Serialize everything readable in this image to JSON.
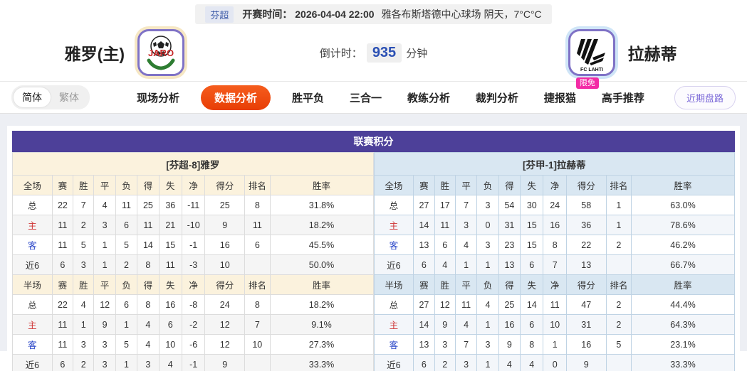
{
  "match_bar": {
    "league": "芬超",
    "kickoff": "开赛时间： 2026-04-04 22:00",
    "venue_weather": "雅各布斯塔德中心球场  阴天，7°C°C"
  },
  "teams": {
    "home": {
      "name": "雅罗(主)",
      "logo_text": "JARO"
    },
    "away": {
      "name": "拉赫蒂",
      "logo_text": "FC LAHTI"
    }
  },
  "countdown": {
    "label": "倒计时：",
    "value": "935",
    "unit": "分钟"
  },
  "nav": {
    "lang_simplified": "简体",
    "lang_traditional": "繁体",
    "tabs": [
      {
        "label": "现场分析",
        "active": false
      },
      {
        "label": "数据分析",
        "active": true
      },
      {
        "label": "胜平负",
        "active": false
      },
      {
        "label": "三合一",
        "active": false
      },
      {
        "label": "教练分析",
        "active": false
      },
      {
        "label": "裁判分析",
        "active": false
      },
      {
        "label": "捷报猫",
        "active": false,
        "badge": "限免"
      },
      {
        "label": "高手推荐",
        "active": false
      }
    ],
    "recent_button": "近期盘路"
  },
  "section": {
    "title": "联赛积分",
    "tables": [
      {
        "theme": "cream",
        "title": "[芬超-8]雅罗",
        "full_columns": [
          "全场",
          "赛",
          "胜",
          "平",
          "负",
          "得",
          "失",
          "净",
          "得分",
          "排名",
          "胜率"
        ],
        "full_rows": [
          [
            "总",
            "22",
            "7",
            "4",
            "11",
            "25",
            "36",
            "-11",
            "25",
            "8",
            "31.8%"
          ],
          [
            "主",
            "11",
            "2",
            "3",
            "6",
            "11",
            "21",
            "-10",
            "9",
            "11",
            "18.2%"
          ],
          [
            "客",
            "11",
            "5",
            "1",
            "5",
            "14",
            "15",
            "-1",
            "16",
            "6",
            "45.5%"
          ],
          [
            "近6",
            "6",
            "3",
            "1",
            "2",
            "8",
            "11",
            "-3",
            "10",
            "",
            "50.0%"
          ]
        ],
        "half_columns": [
          "半场",
          "赛",
          "胜",
          "平",
          "负",
          "得",
          "失",
          "净",
          "得分",
          "排名",
          "胜率"
        ],
        "half_rows": [
          [
            "总",
            "22",
            "4",
            "12",
            "6",
            "8",
            "16",
            "-8",
            "24",
            "8",
            "18.2%"
          ],
          [
            "主",
            "11",
            "1",
            "9",
            "1",
            "4",
            "6",
            "-2",
            "12",
            "7",
            "9.1%"
          ],
          [
            "客",
            "11",
            "3",
            "3",
            "5",
            "4",
            "10",
            "-6",
            "12",
            "10",
            "27.3%"
          ],
          [
            "近6",
            "6",
            "2",
            "3",
            "1",
            "3",
            "4",
            "-1",
            "9",
            "",
            "33.3%"
          ]
        ]
      },
      {
        "theme": "blue",
        "title": "[芬甲-1]拉赫蒂",
        "full_columns": [
          "全场",
          "赛",
          "胜",
          "平",
          "负",
          "得",
          "失",
          "净",
          "得分",
          "排名",
          "胜率"
        ],
        "full_rows": [
          [
            "总",
            "27",
            "17",
            "7",
            "3",
            "54",
            "30",
            "24",
            "58",
            "1",
            "63.0%"
          ],
          [
            "主",
            "14",
            "11",
            "3",
            "0",
            "31",
            "15",
            "16",
            "36",
            "1",
            "78.6%"
          ],
          [
            "客",
            "13",
            "6",
            "4",
            "3",
            "23",
            "15",
            "8",
            "22",
            "2",
            "46.2%"
          ],
          [
            "近6",
            "6",
            "4",
            "1",
            "1",
            "13",
            "6",
            "7",
            "13",
            "",
            "66.7%"
          ]
        ],
        "half_columns": [
          "半场",
          "赛",
          "胜",
          "平",
          "负",
          "得",
          "失",
          "净",
          "得分",
          "排名",
          "胜率"
        ],
        "half_rows": [
          [
            "总",
            "27",
            "12",
            "11",
            "4",
            "25",
            "14",
            "11",
            "47",
            "2",
            "44.4%"
          ],
          [
            "主",
            "14",
            "9",
            "4",
            "1",
            "16",
            "6",
            "10",
            "31",
            "2",
            "64.3%"
          ],
          [
            "客",
            "13",
            "3",
            "7",
            "3",
            "9",
            "8",
            "1",
            "16",
            "5",
            "23.1%"
          ],
          [
            "近6",
            "6",
            "2",
            "3",
            "1",
            "4",
            "4",
            "0",
            "9",
            "",
            "33.3%"
          ]
        ]
      }
    ]
  },
  "colors": {
    "header_purple": "#4d4099",
    "active_tab_orange": "#e83d05",
    "badge_pink": "#f32ba5",
    "home_panel_cream": "#fbf2dd",
    "away_panel_blue": "#d9e7f2",
    "countdown_blue": "#2b50b4",
    "home_row_red": "#cf3434",
    "away_row_blue": "#2a46c8"
  }
}
